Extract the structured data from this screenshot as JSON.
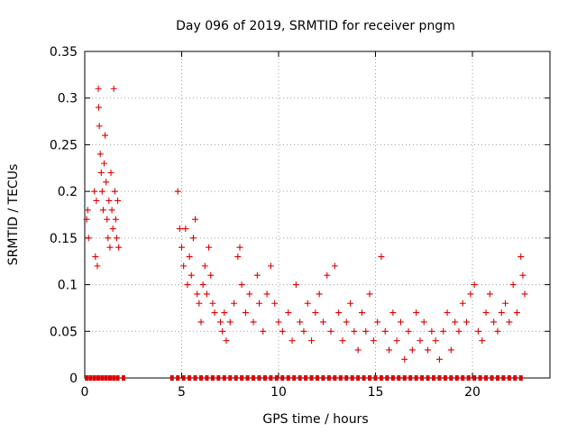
{
  "chart_data": {
    "type": "scatter",
    "title": "Day 096 of 2019, SRMTID for receiver pngm",
    "xlabel": "GPS time / hours",
    "ylabel": "SRMTID / TECUs",
    "xlim": [
      0,
      24
    ],
    "ylim": [
      0,
      0.35
    ],
    "xticks": [
      0,
      5,
      10,
      15,
      20
    ],
    "xtick_labels": [
      "0",
      "5",
      "10",
      "15",
      "20"
    ],
    "yticks": [
      0,
      0.05,
      0.1,
      0.15,
      0.2,
      0.25,
      0.3,
      0.35
    ],
    "ytick_labels": [
      "0",
      "0.05",
      "0.1",
      "0.15",
      "0.2",
      "0.25",
      "0.3",
      "0.35"
    ],
    "grid": true,
    "legend": "none",
    "series": [
      {
        "name": "SRMTID",
        "marker": "plus",
        "color": "#e00000",
        "points": [
          [
            0.1,
            0.17
          ],
          [
            0.15,
            0.18
          ],
          [
            0.2,
            0.15
          ],
          [
            0.5,
            0.2
          ],
          [
            0.55,
            0.13
          ],
          [
            0.6,
            0.19
          ],
          [
            0.65,
            0.12
          ],
          [
            0.7,
            0.31
          ],
          [
            0.72,
            0.29
          ],
          [
            0.75,
            0.27
          ],
          [
            0.8,
            0.24
          ],
          [
            0.85,
            0.22
          ],
          [
            0.9,
            0.2
          ],
          [
            0.95,
            0.18
          ],
          [
            1.0,
            0.23
          ],
          [
            1.05,
            0.26
          ],
          [
            1.1,
            0.21
          ],
          [
            1.15,
            0.17
          ],
          [
            1.2,
            0.15
          ],
          [
            1.25,
            0.19
          ],
          [
            1.3,
            0.14
          ],
          [
            1.35,
            0.22
          ],
          [
            1.4,
            0.18
          ],
          [
            1.45,
            0.16
          ],
          [
            1.5,
            0.31
          ],
          [
            1.55,
            0.2
          ],
          [
            1.6,
            0.17
          ],
          [
            1.65,
            0.15
          ],
          [
            1.7,
            0.19
          ],
          [
            1.75,
            0.14
          ],
          [
            4.8,
            0.2
          ],
          [
            4.9,
            0.16
          ],
          [
            5.0,
            0.14
          ],
          [
            5.1,
            0.12
          ],
          [
            5.2,
            0.16
          ],
          [
            5.3,
            0.1
          ],
          [
            5.4,
            0.13
          ],
          [
            5.5,
            0.11
          ],
          [
            5.6,
            0.15
          ],
          [
            5.7,
            0.17
          ],
          [
            5.8,
            0.09
          ],
          [
            5.9,
            0.08
          ],
          [
            6.0,
            0.06
          ],
          [
            6.1,
            0.1
          ],
          [
            6.2,
            0.12
          ],
          [
            6.3,
            0.09
          ],
          [
            6.4,
            0.14
          ],
          [
            6.5,
            0.11
          ],
          [
            6.6,
            0.08
          ],
          [
            6.7,
            0.07
          ],
          [
            7.0,
            0.06
          ],
          [
            7.1,
            0.05
          ],
          [
            7.2,
            0.07
          ],
          [
            7.3,
            0.04
          ],
          [
            7.5,
            0.06
          ],
          [
            7.7,
            0.08
          ],
          [
            7.9,
            0.13
          ],
          [
            8.0,
            0.14
          ],
          [
            8.1,
            0.1
          ],
          [
            8.3,
            0.07
          ],
          [
            8.5,
            0.09
          ],
          [
            8.7,
            0.06
          ],
          [
            8.9,
            0.11
          ],
          [
            9.0,
            0.08
          ],
          [
            9.2,
            0.05
          ],
          [
            9.4,
            0.09
          ],
          [
            9.6,
            0.12
          ],
          [
            9.8,
            0.08
          ],
          [
            10.0,
            0.06
          ],
          [
            10.2,
            0.05
          ],
          [
            10.5,
            0.07
          ],
          [
            10.7,
            0.04
          ],
          [
            10.9,
            0.1
          ],
          [
            11.1,
            0.06
          ],
          [
            11.3,
            0.05
          ],
          [
            11.5,
            0.08
          ],
          [
            11.7,
            0.04
          ],
          [
            11.9,
            0.07
          ],
          [
            12.1,
            0.09
          ],
          [
            12.3,
            0.06
          ],
          [
            12.5,
            0.11
          ],
          [
            12.7,
            0.05
          ],
          [
            12.9,
            0.12
          ],
          [
            13.1,
            0.07
          ],
          [
            13.3,
            0.04
          ],
          [
            13.5,
            0.06
          ],
          [
            13.7,
            0.08
          ],
          [
            13.9,
            0.05
          ],
          [
            14.1,
            0.03
          ],
          [
            14.3,
            0.07
          ],
          [
            14.5,
            0.05
          ],
          [
            14.7,
            0.09
          ],
          [
            14.9,
            0.04
          ],
          [
            15.1,
            0.06
          ],
          [
            15.3,
            0.13
          ],
          [
            15.5,
            0.05
          ],
          [
            15.7,
            0.03
          ],
          [
            15.9,
            0.07
          ],
          [
            16.1,
            0.04
          ],
          [
            16.3,
            0.06
          ],
          [
            16.5,
            0.02
          ],
          [
            16.7,
            0.05
          ],
          [
            16.9,
            0.03
          ],
          [
            17.1,
            0.07
          ],
          [
            17.3,
            0.04
          ],
          [
            17.5,
            0.06
          ],
          [
            17.7,
            0.03
          ],
          [
            17.9,
            0.05
          ],
          [
            18.1,
            0.04
          ],
          [
            18.3,
            0.02
          ],
          [
            18.5,
            0.05
          ],
          [
            18.7,
            0.07
          ],
          [
            18.9,
            0.03
          ],
          [
            19.1,
            0.06
          ],
          [
            19.3,
            0.05
          ],
          [
            19.5,
            0.08
          ],
          [
            19.7,
            0.06
          ],
          [
            19.9,
            0.09
          ],
          [
            20.1,
            0.1
          ],
          [
            20.3,
            0.05
          ],
          [
            20.5,
            0.04
          ],
          [
            20.7,
            0.07
          ],
          [
            20.9,
            0.09
          ],
          [
            21.1,
            0.06
          ],
          [
            21.3,
            0.05
          ],
          [
            21.5,
            0.07
          ],
          [
            21.7,
            0.08
          ],
          [
            21.9,
            0.06
          ],
          [
            22.1,
            0.1
          ],
          [
            22.3,
            0.07
          ],
          [
            22.5,
            0.13
          ],
          [
            22.6,
            0.11
          ],
          [
            22.7,
            0.09
          ]
        ]
      }
    ],
    "zero_markers_x": [
      0.1,
      0.3,
      0.5,
      0.7,
      0.9,
      1.1,
      1.3,
      1.5,
      1.7,
      2.0,
      4.5,
      4.8,
      5.1,
      5.4,
      5.7,
      6.0,
      6.3,
      6.6,
      6.9,
      7.2,
      7.5,
      7.8,
      8.1,
      8.4,
      8.7,
      9.0,
      9.3,
      9.6,
      9.9,
      10.2,
      10.5,
      10.8,
      11.1,
      11.4,
      11.7,
      12.0,
      12.3,
      12.6,
      12.9,
      13.2,
      13.5,
      13.8,
      14.1,
      14.4,
      14.7,
      15.0,
      15.3,
      15.6,
      15.9,
      16.2,
      16.5,
      16.8,
      17.1,
      17.4,
      17.7,
      18.0,
      18.3,
      18.6,
      18.9,
      19.2,
      19.5,
      19.8,
      20.1,
      20.4,
      20.7,
      21.0,
      21.3,
      21.6,
      21.9,
      22.2,
      22.5
    ]
  }
}
